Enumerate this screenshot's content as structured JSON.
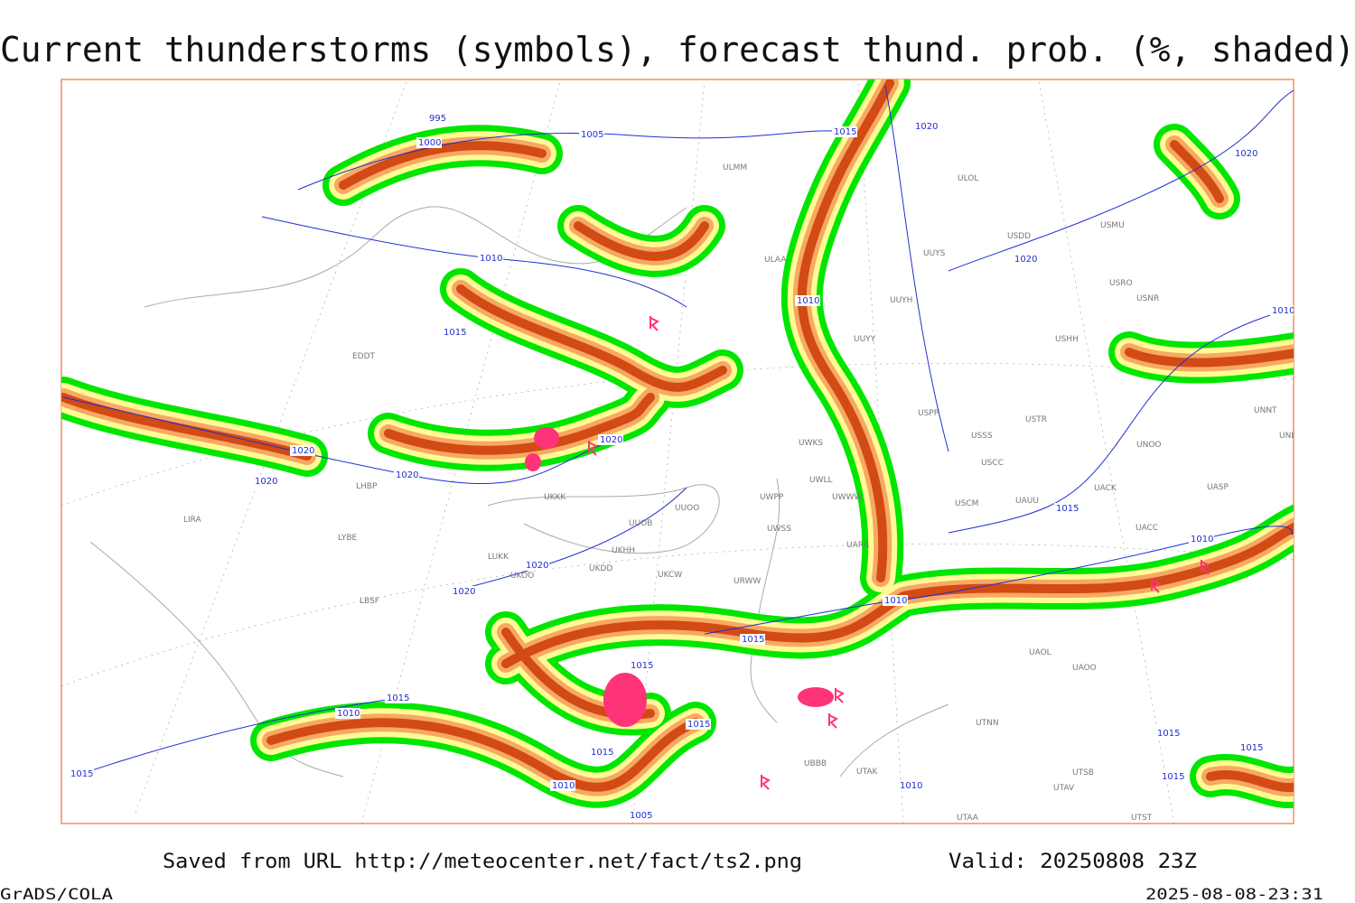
{
  "header": {
    "title": "Current thunderstorms (symbols), forecast thund. prob. (%, shaded)"
  },
  "map": {
    "stations": [
      "ULMM",
      "ULOL",
      "USDD",
      "USMU",
      "UUYS",
      "ULAA",
      "UUYH",
      "USRO",
      "USNR",
      "UUYY",
      "USHH",
      "EDDT",
      "USPP",
      "USSS",
      "USTR",
      "UWKS",
      "USCC",
      "UWLL",
      "UWWW",
      "UWPP",
      "UKKK",
      "UUOO",
      "UUOB",
      "LHBP",
      "USCM",
      "UAUU",
      "UACK",
      "UASP",
      "UNNT",
      "UNBB",
      "UNOO",
      "UACC",
      "UWSS",
      "UARR",
      "LYBE",
      "LIRA",
      "LUKK",
      "UKOO",
      "UKHH",
      "UKDD",
      "UKCW",
      "URWW",
      "UAOL",
      "UAOO",
      "UTNN",
      "UBBB",
      "UTAK",
      "UTSB",
      "UTAV",
      "UTAA",
      "UTST",
      "LBSF"
    ],
    "isobar_labels": [
      "995",
      "1000",
      "1005",
      "1015",
      "1020",
      "1020",
      "1010",
      "1020",
      "1010",
      "1010",
      "1015",
      "1020",
      "1020",
      "1020",
      "1020",
      "1015",
      "1010",
      "1020",
      "1020",
      "1010",
      "1015",
      "1015",
      "1015",
      "1010",
      "1015",
      "1015",
      "1010",
      "1005",
      "1015",
      "1010",
      "1015",
      "1015",
      "1015"
    ]
  },
  "footer": {
    "source": "Saved from URL http://meteocenter.net/fact/ts2.png",
    "valid": "Valid: 20250808 23Z",
    "software": "GrADS/COLA",
    "timestamp": "2025-08-08-23:31"
  }
}
